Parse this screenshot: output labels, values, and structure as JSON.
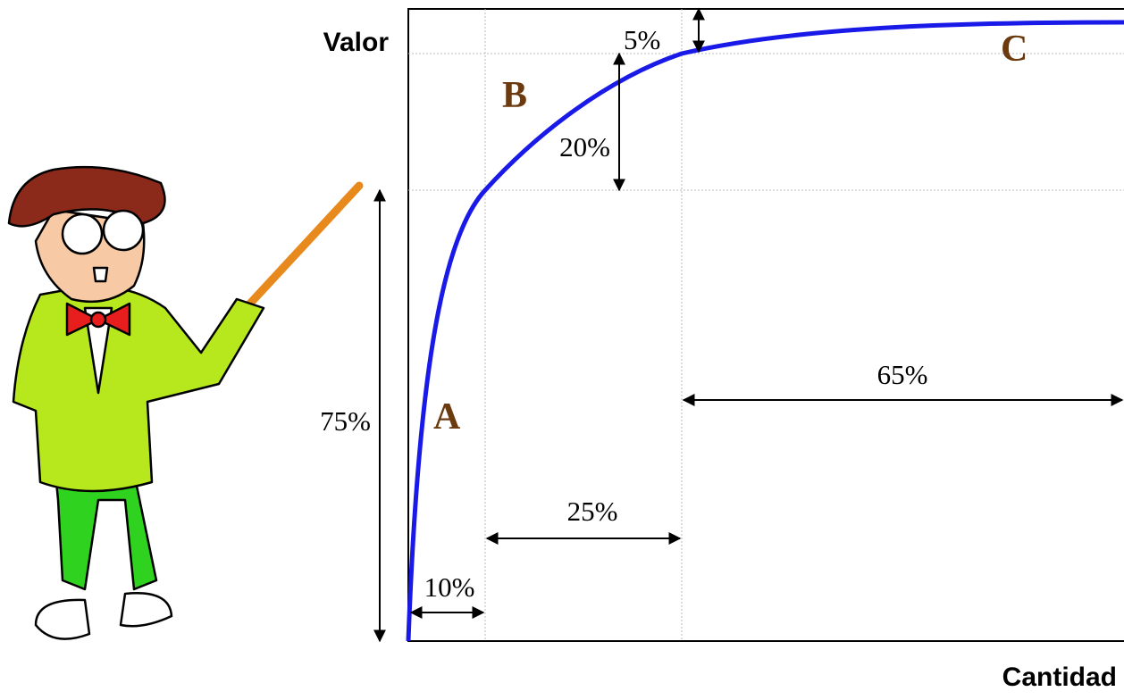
{
  "axes": {
    "y_label": "Valor",
    "x_label": "Cantidad"
  },
  "zones": [
    {
      "label": "A",
      "value_share": "75%",
      "quantity_share": "10%"
    },
    {
      "label": "B",
      "value_share": "20%",
      "quantity_share": "25%"
    },
    {
      "label": "C",
      "value_share": "5%",
      "quantity_share": "65%"
    }
  ]
}
